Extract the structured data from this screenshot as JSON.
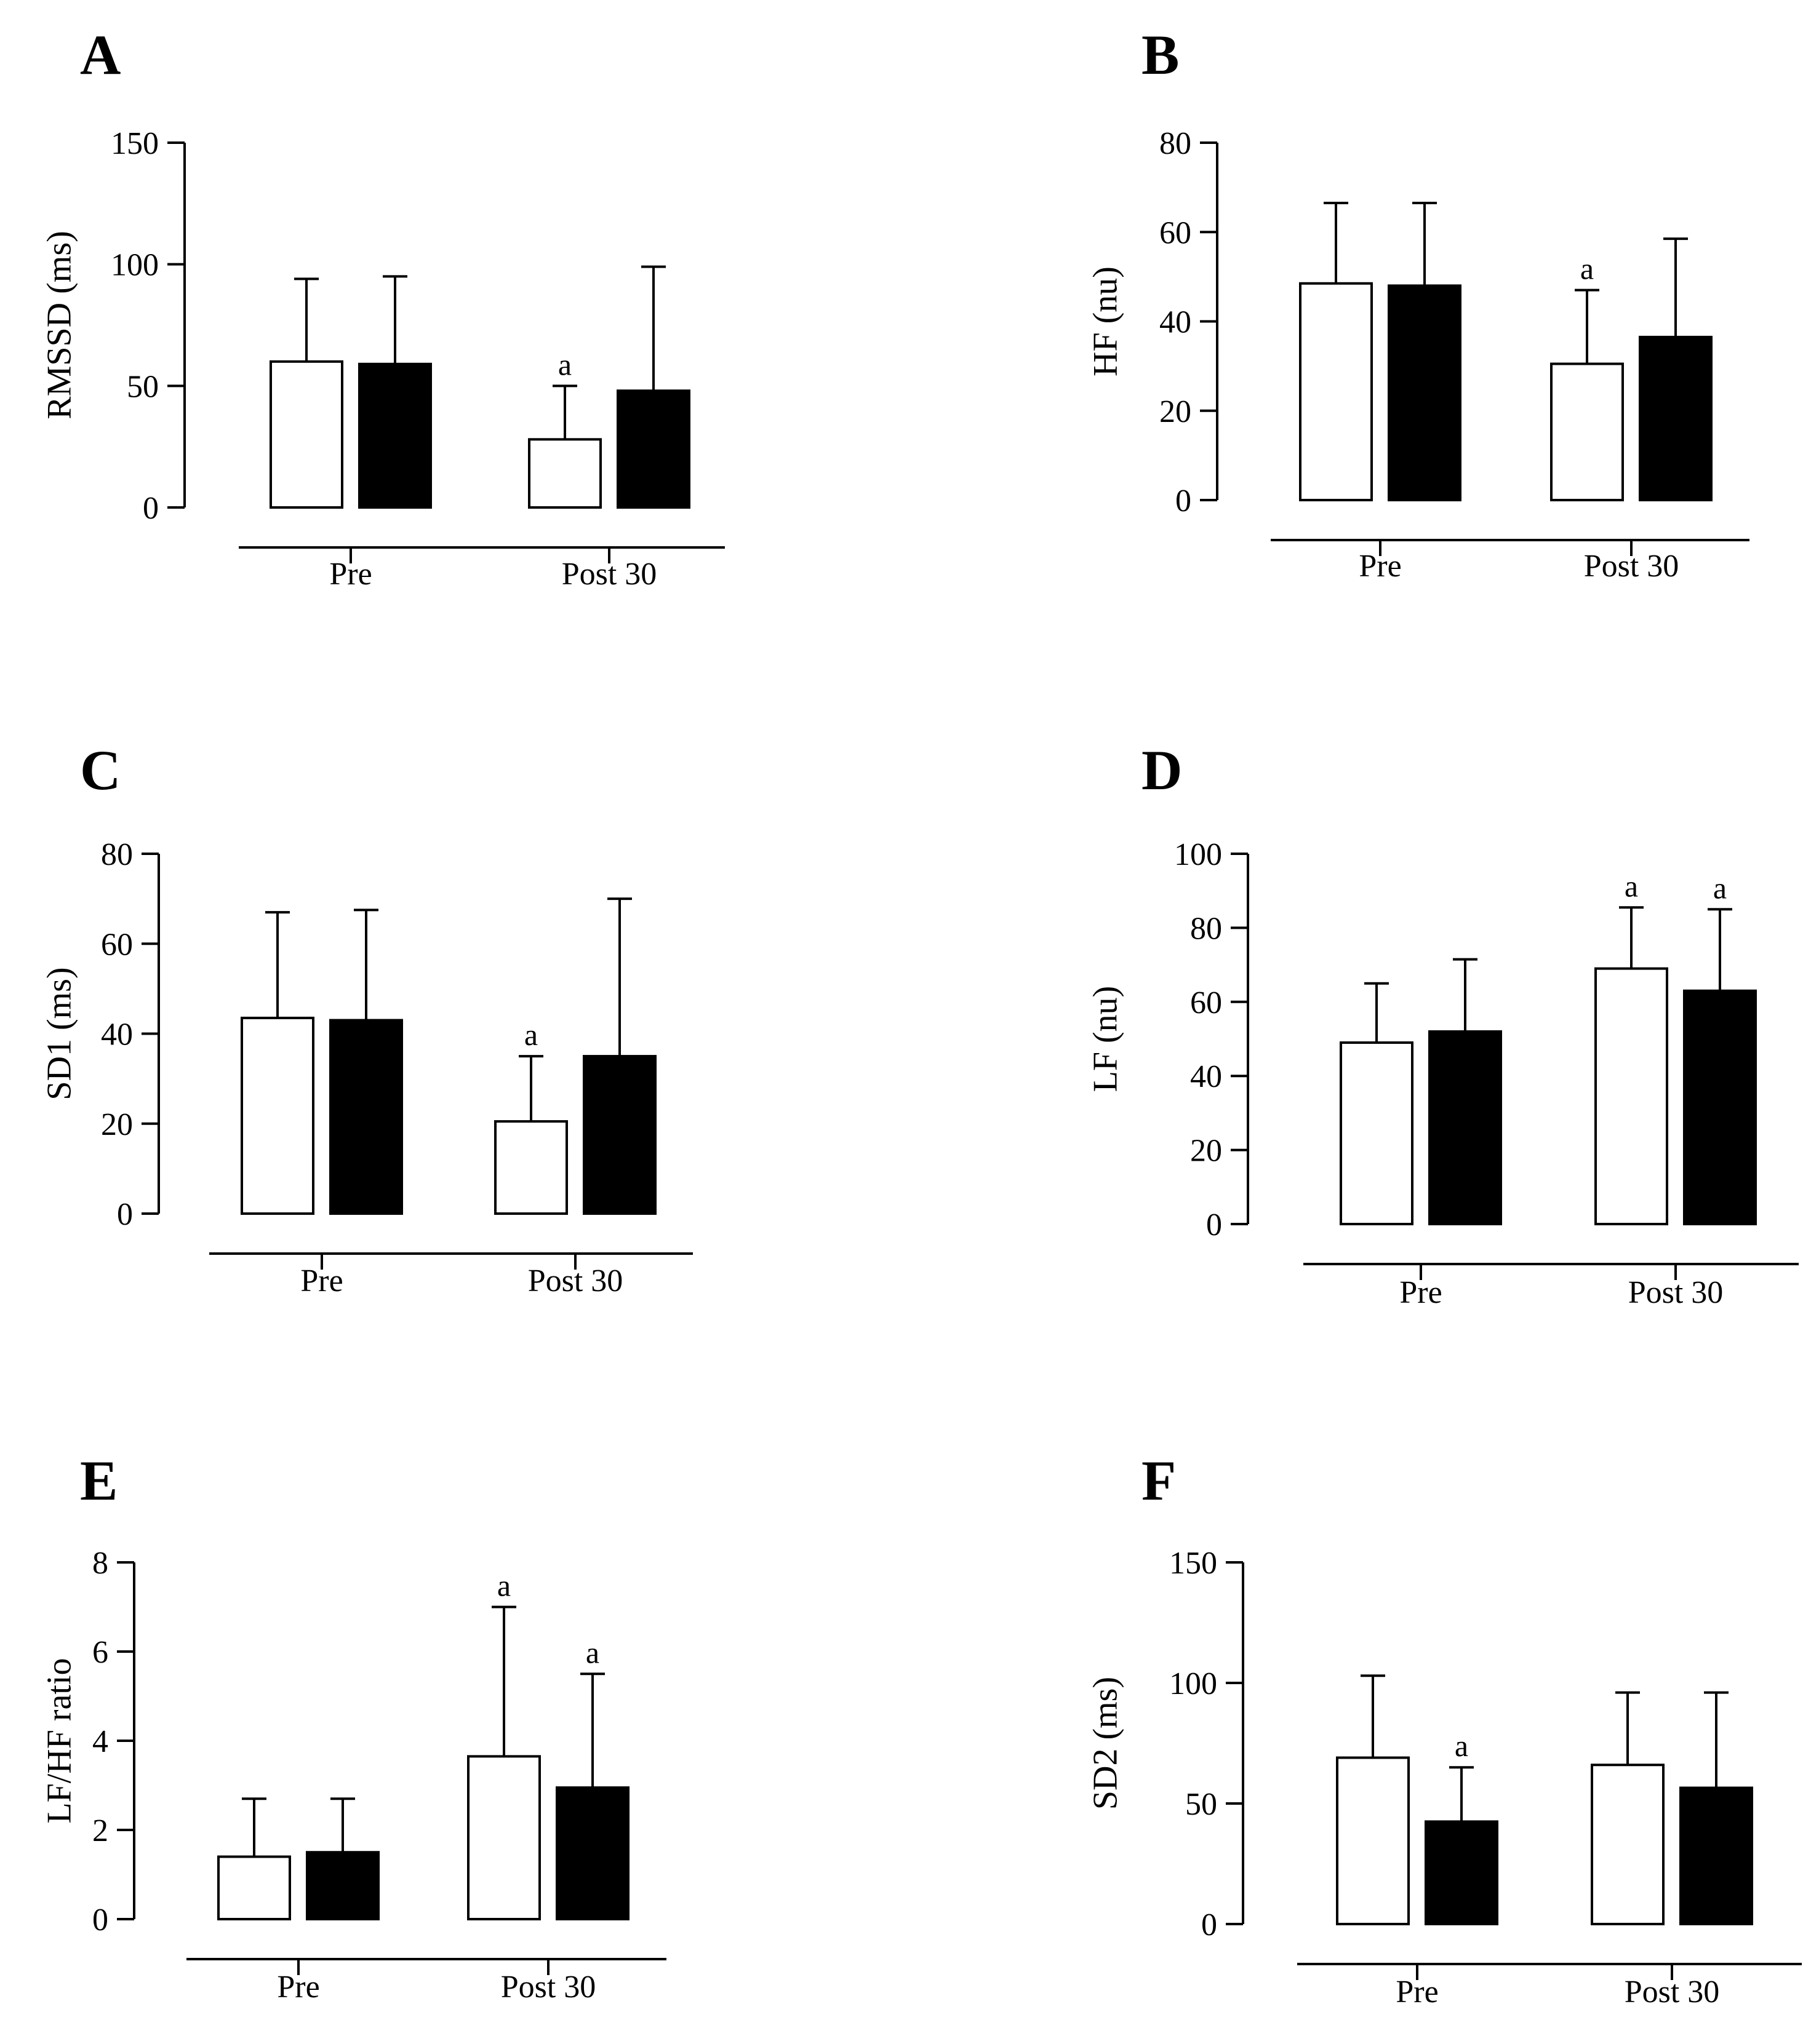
{
  "colors": {
    "control": "#ffffff",
    "treatment": "#000000",
    "stroke": "#000000"
  },
  "chart_data": [
    {
      "type": "bar",
      "panel": "A",
      "ylabel": "RMSSD (ms)",
      "ylim": [
        0,
        150
      ],
      "ytick_labels": [
        "0",
        "50",
        "100",
        "150"
      ],
      "categories": [
        "Pre",
        "Post 30"
      ],
      "series": [
        {
          "name": "white bars",
          "values": [
            60,
            28
          ],
          "error_upper": [
            94,
            50
          ],
          "sig": [
            "",
            "a"
          ]
        },
        {
          "name": "black bars",
          "values": [
            59,
            48
          ],
          "error_upper": [
            95,
            99
          ],
          "sig": [
            "",
            ""
          ]
        }
      ]
    },
    {
      "type": "bar",
      "panel": "B",
      "ylabel": "HF (nu)",
      "ylim": [
        0,
        80
      ],
      "ytick_labels": [
        "0",
        "20",
        "40",
        "60",
        "80"
      ],
      "categories": [
        "Pre",
        "Post 30"
      ],
      "series": [
        {
          "name": "white bars",
          "values": [
            48.5,
            30.5
          ],
          "error_upper": [
            66.5,
            47
          ],
          "sig": [
            "",
            "a"
          ]
        },
        {
          "name": "black bars",
          "values": [
            48,
            36.5
          ],
          "error_upper": [
            66.5,
            58.5
          ],
          "sig": [
            "",
            ""
          ]
        }
      ]
    },
    {
      "type": "bar",
      "panel": "C",
      "ylabel": "SD1 (ms)",
      "ylim": [
        0,
        80
      ],
      "ytick_labels": [
        "0",
        "20",
        "40",
        "60",
        "80"
      ],
      "categories": [
        "Pre",
        "Post 30"
      ],
      "series": [
        {
          "name": "white bars",
          "values": [
            43.5,
            20.5
          ],
          "error_upper": [
            67,
            35
          ],
          "sig": [
            "",
            "a"
          ]
        },
        {
          "name": "black bars",
          "values": [
            43,
            35
          ],
          "error_upper": [
            67.5,
            70
          ],
          "sig": [
            "",
            ""
          ]
        }
      ]
    },
    {
      "type": "bar",
      "panel": "D",
      "ylabel": "LF (nu)",
      "ylim": [
        0,
        100
      ],
      "ytick_labels": [
        "0",
        "20",
        "40",
        "60",
        "80",
        "100"
      ],
      "categories": [
        "Pre",
        "Post 30"
      ],
      "series": [
        {
          "name": "white bars",
          "values": [
            49,
            69
          ],
          "error_upper": [
            65,
            85.5
          ],
          "sig": [
            "",
            "a"
          ]
        },
        {
          "name": "black bars",
          "values": [
            52,
            63
          ],
          "error_upper": [
            71.5,
            85
          ],
          "sig": [
            "",
            "a"
          ]
        }
      ]
    },
    {
      "type": "bar",
      "panel": "E",
      "ylabel": "LF/HF ratio",
      "ylim": [
        0,
        8
      ],
      "ytick_labels": [
        "0",
        "2",
        "4",
        "6",
        "8"
      ],
      "categories": [
        "Pre",
        "Post 30"
      ],
      "series": [
        {
          "name": "white bars",
          "values": [
            1.4,
            3.65
          ],
          "error_upper": [
            2.7,
            7.0
          ],
          "sig": [
            "",
            "a"
          ]
        },
        {
          "name": "black bars",
          "values": [
            1.5,
            2.95
          ],
          "error_upper": [
            2.7,
            5.5
          ],
          "sig": [
            "",
            "a"
          ]
        }
      ]
    },
    {
      "type": "bar",
      "panel": "F",
      "ylabel": "SD2 (ms)",
      "ylim": [
        0,
        150
      ],
      "ytick_labels": [
        "0",
        "50",
        "100",
        "150"
      ],
      "categories": [
        "Pre",
        "Post 30"
      ],
      "series": [
        {
          "name": "white bars",
          "values": [
            69,
            66
          ],
          "error_upper": [
            103,
            96
          ],
          "sig": [
            "",
            ""
          ]
        },
        {
          "name": "black bars",
          "values": [
            42.5,
            56.5
          ],
          "error_upper": [
            65,
            96
          ],
          "sig": [
            "a",
            ""
          ]
        }
      ]
    }
  ]
}
